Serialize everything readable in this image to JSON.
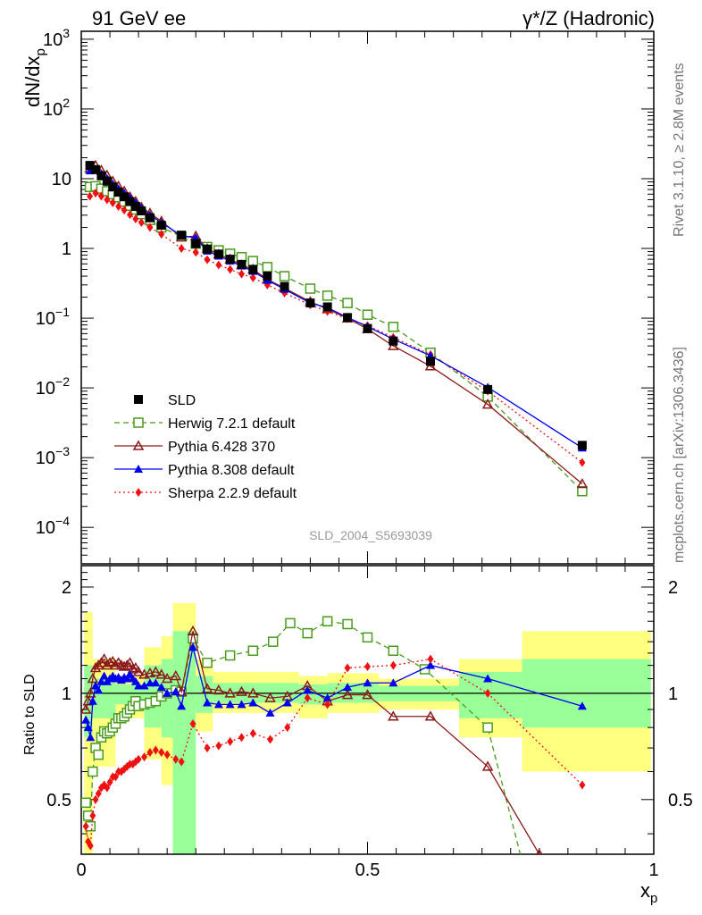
{
  "header": {
    "left_title": "91 GeV ee",
    "right_title": "γ*/Z (Hadronic)",
    "side_rivet": "Rivet 3.1.10, ≥ 2.8M events",
    "side_mcplots": "mcplots.cern.ch [arXiv:1306.3436]",
    "analysis_id": "SLD_2004_S5693039"
  },
  "axes": {
    "upper_ylabel": "dN/dx",
    "upper_ylabel_sub": "p",
    "lower_ylabel": "Ratio to SLD",
    "xlabel": "x",
    "xlabel_sub": "p",
    "upper_yticks": [
      {
        "value": 0.0001,
        "text": "10",
        "exp": "−4"
      },
      {
        "value": 0.001,
        "text": "10",
        "exp": "−3"
      },
      {
        "value": 0.01,
        "text": "10",
        "exp": "−2"
      },
      {
        "value": 0.1,
        "text": "10",
        "exp": "−1"
      },
      {
        "value": 1,
        "text": "1",
        "exp": ""
      },
      {
        "value": 10,
        "text": "10",
        "exp": ""
      },
      {
        "value": 100,
        "text": "10",
        "exp": "2"
      },
      {
        "value": 1000,
        "text": "10",
        "exp": "3"
      }
    ],
    "lower_yticks": [
      {
        "value": 0.5,
        "text": "0.5"
      },
      {
        "value": 1,
        "text": "1"
      },
      {
        "value": 2,
        "text": "2"
      }
    ],
    "xticks": [
      {
        "value": 0,
        "text": "0"
      },
      {
        "value": 0.5,
        "text": "0.5"
      },
      {
        "value": 1,
        "text": "1"
      }
    ]
  },
  "legend": [
    {
      "label": "SLD",
      "marker": "square-filled",
      "color": "#000000",
      "line": "none"
    },
    {
      "label": "Herwig 7.2.1 default",
      "marker": "square-open",
      "color": "#4a9a1e",
      "line": "dashed"
    },
    {
      "label": "Pythia 6.428 370",
      "marker": "triangle-open",
      "color": "#8b1a1a",
      "line": "solid"
    },
    {
      "label": "Pythia 8.308 default",
      "marker": "triangle-filled",
      "color": "#0000ee",
      "line": "solid"
    },
    {
      "label": "Sherpa 2.2.9 default",
      "marker": "diamond-filled",
      "color": "#ee1111",
      "line": "dotted"
    }
  ],
  "chart_data": [
    {
      "type": "line",
      "panel": "main",
      "x_range": [
        0,
        1
      ],
      "y_range": [
        3e-05,
        1300
      ],
      "y_scale": "log",
      "x": [
        0.015,
        0.025,
        0.035,
        0.045,
        0.055,
        0.065,
        0.075,
        0.085,
        0.095,
        0.105,
        0.12,
        0.14,
        0.175,
        0.2,
        0.22,
        0.24,
        0.26,
        0.28,
        0.3,
        0.325,
        0.355,
        0.4,
        0.43,
        0.465,
        0.5,
        0.545,
        0.61,
        0.71,
        0.875
      ],
      "series": [
        {
          "name": "SLD",
          "values": [
            15.5,
            13.5,
            11.0,
            9.2,
            7.6,
            6.4,
            5.5,
            4.7,
            4.0,
            3.45,
            2.75,
            2.15,
            1.55,
            1.17,
            0.98,
            0.83,
            0.7,
            0.59,
            0.5,
            0.4,
            0.285,
            0.165,
            0.145,
            0.102,
            0.071,
            0.047,
            0.024,
            0.0095,
            0.0015
          ]
        },
        {
          "name": "Herwig 7.2.1 default",
          "values": [
            7.6,
            7.8,
            7.2,
            6.6,
            6.0,
            5.4,
            4.7,
            4.1,
            3.6,
            3.1,
            2.55,
            2.0,
            1.48,
            1.17,
            1.05,
            0.94,
            0.84,
            0.75,
            0.66,
            0.54,
            0.4,
            0.265,
            0.21,
            0.165,
            0.112,
            0.075,
            0.032,
            0.0075,
            0.00033
          ]
        },
        {
          "name": "Pythia 6.428 370",
          "values": [
            14.0,
            15.5,
            13.2,
            11.2,
            9.2,
            7.8,
            6.6,
            5.5,
            4.7,
            3.9,
            3.2,
            2.45,
            1.45,
            1.5,
            0.99,
            0.82,
            0.7,
            0.58,
            0.5,
            0.36,
            0.27,
            0.172,
            0.135,
            0.1,
            0.07,
            0.04,
            0.0205,
            0.0058,
            0.00042
          ]
        },
        {
          "name": "Pythia 8.308 default",
          "values": [
            13.0,
            13.3,
            11.8,
            10.0,
            8.4,
            7.2,
            6.2,
            5.3,
            4.5,
            3.8,
            3.0,
            2.35,
            1.52,
            1.42,
            0.92,
            0.78,
            0.66,
            0.56,
            0.47,
            0.35,
            0.26,
            0.165,
            0.142,
            0.102,
            0.076,
            0.05,
            0.029,
            0.0102,
            0.00138
          ]
        },
        {
          "name": "Sherpa 2.2.9 default",
          "values": [
            5.6,
            6.2,
            5.6,
            5.0,
            4.5,
            4.0,
            3.55,
            3.05,
            2.65,
            2.35,
            2.0,
            1.6,
            1.0,
            0.88,
            0.69,
            0.58,
            0.5,
            0.43,
            0.38,
            0.3,
            0.23,
            0.155,
            0.125,
            0.098,
            0.078,
            0.053,
            0.03,
            0.009,
            0.00085
          ]
        }
      ]
    },
    {
      "type": "line",
      "panel": "ratio",
      "x_range": [
        0,
        1
      ],
      "y_range": [
        0.35,
        2.3
      ],
      "y_scale": "log",
      "reference": 1,
      "bands": [
        {
          "x0": 0.005,
          "x1": 0.02,
          "lo": 0.35,
          "hi": 1.7,
          "yellow": true
        },
        {
          "x0": 0.005,
          "x1": 0.02,
          "lo": 0.75,
          "hi": 1.2,
          "yellow": false
        },
        {
          "x0": 0.02,
          "x1": 0.06,
          "lo": 0.62,
          "hi": 1.25,
          "yellow": true
        },
        {
          "x0": 0.02,
          "x1": 0.06,
          "lo": 0.85,
          "hi": 1.1,
          "yellow": false
        },
        {
          "x0": 0.06,
          "x1": 0.11,
          "lo": 0.85,
          "hi": 1.12,
          "yellow": true
        },
        {
          "x0": 0.06,
          "x1": 0.11,
          "lo": 0.93,
          "hi": 1.06,
          "yellow": false
        },
        {
          "x0": 0.11,
          "x1": 0.14,
          "lo": 0.65,
          "hi": 1.35,
          "yellow": true
        },
        {
          "x0": 0.11,
          "x1": 0.14,
          "lo": 0.8,
          "hi": 1.2,
          "yellow": false
        },
        {
          "x0": 0.14,
          "x1": 0.16,
          "lo": 0.55,
          "hi": 1.45,
          "yellow": true
        },
        {
          "x0": 0.14,
          "x1": 0.16,
          "lo": 0.75,
          "hi": 1.25,
          "yellow": false
        },
        {
          "x0": 0.16,
          "x1": 0.2,
          "lo": 0.35,
          "hi": 1.8,
          "yellow": true
        },
        {
          "x0": 0.16,
          "x1": 0.2,
          "lo": 0.35,
          "hi": 1.5,
          "yellow": false
        },
        {
          "x0": 0.2,
          "x1": 0.23,
          "lo": 0.78,
          "hi": 1.25,
          "yellow": true
        },
        {
          "x0": 0.2,
          "x1": 0.23,
          "lo": 0.88,
          "hi": 1.12,
          "yellow": false
        },
        {
          "x0": 0.23,
          "x1": 0.38,
          "lo": 0.88,
          "hi": 1.15,
          "yellow": true
        },
        {
          "x0": 0.23,
          "x1": 0.38,
          "lo": 0.94,
          "hi": 1.07,
          "yellow": false
        },
        {
          "x0": 0.38,
          "x1": 0.43,
          "lo": 0.85,
          "hi": 1.12,
          "yellow": true
        },
        {
          "x0": 0.38,
          "x1": 0.43,
          "lo": 0.93,
          "hi": 1.06,
          "yellow": false
        },
        {
          "x0": 0.43,
          "x1": 0.52,
          "lo": 0.88,
          "hi": 1.14,
          "yellow": true
        },
        {
          "x0": 0.43,
          "x1": 0.52,
          "lo": 0.94,
          "hi": 1.07,
          "yellow": false
        },
        {
          "x0": 0.52,
          "x1": 0.66,
          "lo": 0.9,
          "hi": 1.1,
          "yellow": true
        },
        {
          "x0": 0.52,
          "x1": 0.66,
          "lo": 0.95,
          "hi": 1.05,
          "yellow": false
        },
        {
          "x0": 0.66,
          "x1": 0.77,
          "lo": 0.75,
          "hi": 1.25,
          "yellow": true
        },
        {
          "x0": 0.66,
          "x1": 0.77,
          "lo": 0.85,
          "hi": 1.15,
          "yellow": false
        },
        {
          "x0": 0.77,
          "x1": 0.995,
          "lo": 0.6,
          "hi": 1.5,
          "yellow": true
        },
        {
          "x0": 0.77,
          "x1": 0.995,
          "lo": 0.8,
          "hi": 1.25,
          "yellow": false
        }
      ],
      "series": [
        {
          "name": "Herwig 7.2.1 default",
          "x": [
            0.008,
            0.012,
            0.016,
            0.02,
            0.025,
            0.03,
            0.035,
            0.04,
            0.045,
            0.05,
            0.055,
            0.06,
            0.065,
            0.07,
            0.075,
            0.08,
            0.085,
            0.09,
            0.095,
            0.1,
            0.11,
            0.12,
            0.13,
            0.14,
            0.15,
            0.165,
            0.175,
            0.195,
            0.22,
            0.26,
            0.3,
            0.335,
            0.365,
            0.395,
            0.43,
            0.465,
            0.5,
            0.545,
            0.6,
            0.71,
            0.79
          ],
          "values": [
            0.49,
            0.45,
            0.42,
            0.6,
            0.7,
            0.67,
            0.75,
            0.78,
            0.77,
            0.78,
            0.8,
            0.82,
            0.85,
            0.85,
            0.86,
            0.88,
            0.9,
            0.92,
            0.95,
            0.92,
            0.93,
            0.94,
            0.95,
            0.98,
            1.0,
            1.02,
            1.01,
            1.43,
            1.22,
            1.28,
            1.32,
            1.4,
            1.58,
            1.48,
            1.6,
            1.57,
            1.44,
            1.32,
            1.17,
            0.8,
            0.25
          ]
        },
        {
          "name": "Pythia 6.428 370",
          "x": [
            0.008,
            0.012,
            0.016,
            0.02,
            0.025,
            0.03,
            0.035,
            0.04,
            0.045,
            0.05,
            0.055,
            0.06,
            0.065,
            0.07,
            0.075,
            0.08,
            0.085,
            0.09,
            0.095,
            0.1,
            0.11,
            0.12,
            0.13,
            0.14,
            0.15,
            0.165,
            0.175,
            0.195,
            0.22,
            0.24,
            0.26,
            0.28,
            0.3,
            0.33,
            0.36,
            0.395,
            0.43,
            0.465,
            0.5,
            0.545,
            0.61,
            0.71,
            0.8,
            0.9
          ],
          "values": [
            0.9,
            0.95,
            1.0,
            1.1,
            1.18,
            1.2,
            1.22,
            1.25,
            1.2,
            1.22,
            1.23,
            1.2,
            1.22,
            1.2,
            1.19,
            1.2,
            1.22,
            1.17,
            1.18,
            1.15,
            1.13,
            1.14,
            1.15,
            1.13,
            1.1,
            1.12,
            1.01,
            1.5,
            1.03,
            1.02,
            1.0,
            1.01,
            1.0,
            0.97,
            0.98,
            1.05,
            0.95,
            0.99,
            0.99,
            0.86,
            0.86,
            0.62,
            0.35,
            0.28
          ]
        },
        {
          "name": "Pythia 8.308 default",
          "x": [
            0.008,
            0.012,
            0.016,
            0.02,
            0.025,
            0.03,
            0.035,
            0.04,
            0.045,
            0.05,
            0.055,
            0.06,
            0.065,
            0.07,
            0.075,
            0.08,
            0.085,
            0.09,
            0.095,
            0.1,
            0.11,
            0.12,
            0.13,
            0.14,
            0.15,
            0.165,
            0.175,
            0.195,
            0.22,
            0.24,
            0.26,
            0.28,
            0.3,
            0.33,
            0.36,
            0.395,
            0.43,
            0.465,
            0.5,
            0.545,
            0.61,
            0.71,
            0.875
          ],
          "values": [
            0.84,
            0.8,
            0.75,
            0.95,
            1.05,
            1.02,
            1.08,
            1.12,
            1.08,
            1.1,
            1.12,
            1.1,
            1.11,
            1.09,
            1.11,
            1.1,
            1.13,
            1.1,
            1.08,
            1.05,
            1.05,
            1.07,
            1.07,
            1.04,
            1.0,
            1.01,
            0.92,
            1.35,
            0.94,
            0.93,
            0.93,
            0.93,
            0.94,
            0.88,
            0.94,
            1.02,
            0.97,
            1.04,
            1.07,
            1.07,
            1.2,
            1.1,
            0.92
          ]
        },
        {
          "name": "Sherpa 2.2.9 default",
          "x": [
            0.008,
            0.012,
            0.016,
            0.02,
            0.025,
            0.03,
            0.035,
            0.04,
            0.045,
            0.05,
            0.055,
            0.06,
            0.065,
            0.07,
            0.075,
            0.08,
            0.085,
            0.09,
            0.095,
            0.1,
            0.11,
            0.12,
            0.13,
            0.14,
            0.15,
            0.165,
            0.175,
            0.195,
            0.22,
            0.24,
            0.26,
            0.28,
            0.3,
            0.33,
            0.36,
            0.395,
            0.43,
            0.465,
            0.5,
            0.545,
            0.61,
            0.71,
            0.875
          ],
          "values": [
            0.42,
            0.38,
            0.37,
            0.45,
            0.5,
            0.52,
            0.54,
            0.55,
            0.54,
            0.56,
            0.58,
            0.58,
            0.6,
            0.6,
            0.61,
            0.62,
            0.63,
            0.63,
            0.64,
            0.65,
            0.66,
            0.68,
            0.69,
            0.68,
            0.67,
            0.65,
            0.64,
            0.82,
            0.7,
            0.71,
            0.73,
            0.75,
            0.77,
            0.74,
            0.8,
            0.97,
            0.93,
            1.18,
            1.19,
            1.2,
            1.25,
            1.0,
            0.55
          ]
        }
      ]
    }
  ]
}
